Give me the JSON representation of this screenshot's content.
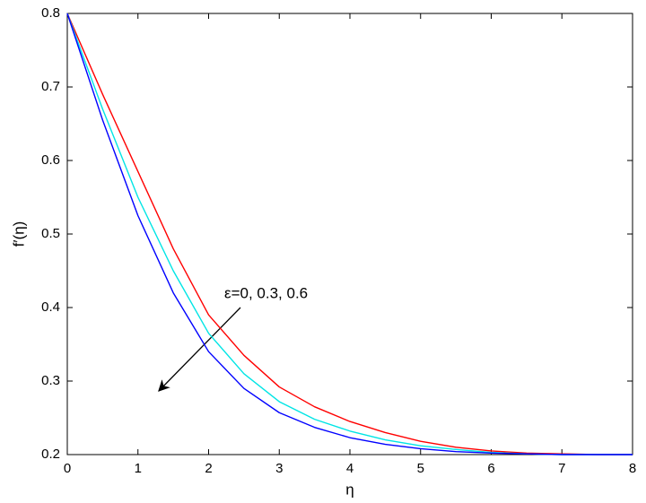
{
  "chart_data": {
    "type": "line",
    "xlabel": "η",
    "ylabel": "f′(η)",
    "annotation": "ε=0, 0.3, 0.6",
    "x": [
      0,
      0.5,
      1,
      1.5,
      2,
      2.5,
      3,
      3.5,
      4,
      4.5,
      5,
      5.5,
      6,
      6.5,
      7,
      7.5,
      8
    ],
    "series": [
      {
        "color": "#ff0000",
        "values": [
          0.8,
          0.69,
          0.585,
          0.48,
          0.39,
          0.335,
          0.292,
          0.265,
          0.245,
          0.23,
          0.218,
          0.21,
          0.205,
          0.202,
          0.201,
          0.2,
          0.2
        ]
      },
      {
        "color": "#00e5e5",
        "values": [
          0.8,
          0.67,
          0.55,
          0.45,
          0.365,
          0.31,
          0.272,
          0.248,
          0.232,
          0.22,
          0.212,
          0.207,
          0.203,
          0.201,
          0.2,
          0.2,
          0.2
        ]
      },
      {
        "color": "#0000ff",
        "values": [
          0.8,
          0.655,
          0.525,
          0.42,
          0.34,
          0.29,
          0.257,
          0.237,
          0.223,
          0.214,
          0.208,
          0.204,
          0.202,
          0.201,
          0.2,
          0.2,
          0.2
        ]
      }
    ],
    "xlim": [
      0,
      8
    ],
    "ylim": [
      0.2,
      0.8
    ],
    "xticks": [
      0,
      1,
      2,
      3,
      4,
      5,
      6,
      7,
      8
    ],
    "yticks": [
      0.2,
      0.3,
      0.4,
      0.5,
      0.6,
      0.7,
      0.8
    ],
    "grid": false
  }
}
